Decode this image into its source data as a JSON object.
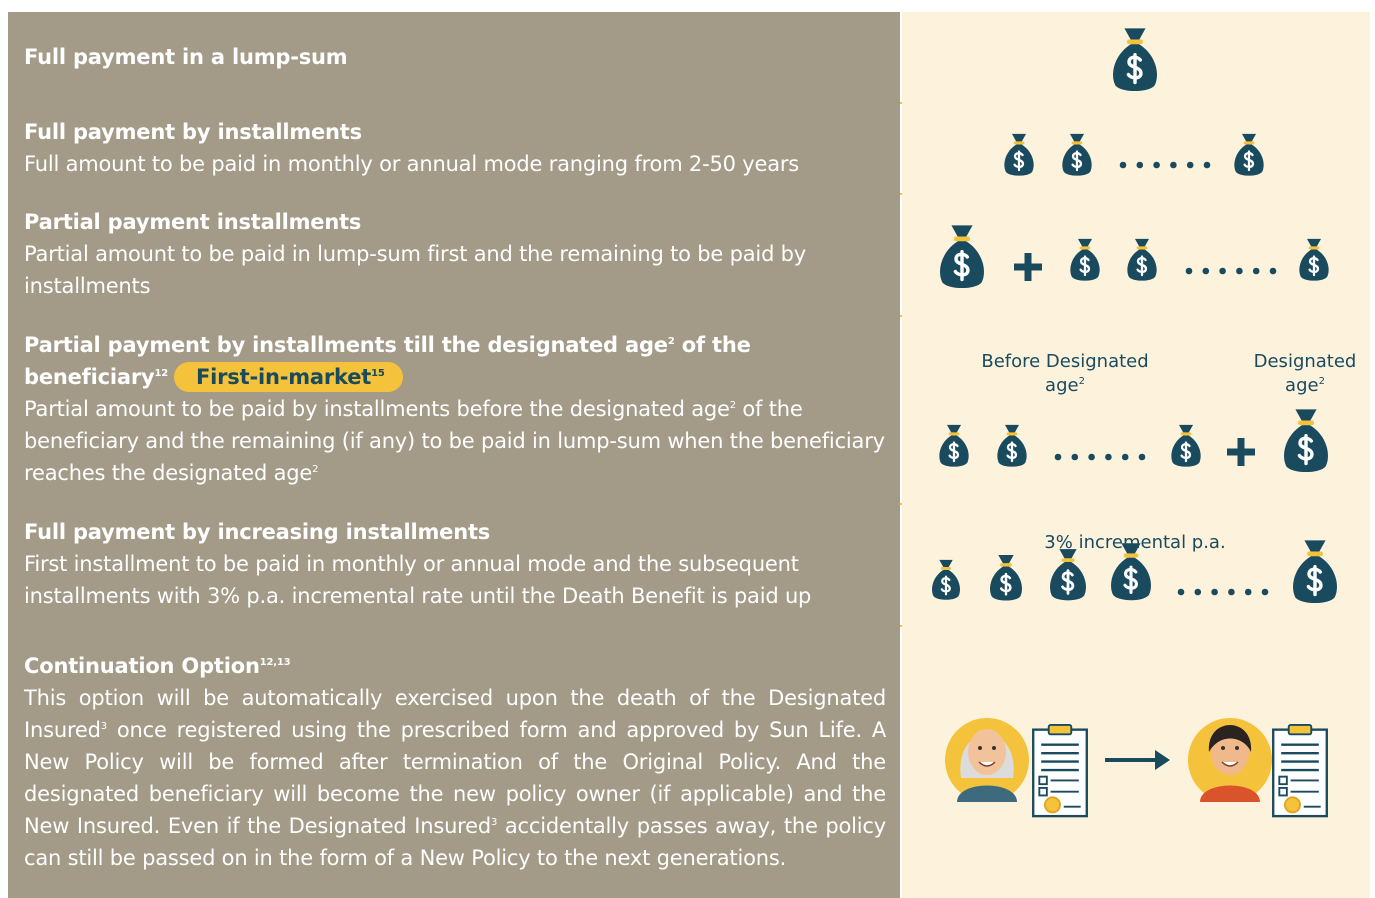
{
  "rows": [
    {
      "title": [
        {
          "text": "Full payment in a lump-sum"
        }
      ]
    },
    {
      "title": [
        {
          "text": "Full payment by installments"
        }
      ],
      "description": [
        {
          "text": "Full amount to be paid in monthly or annual mode ranging from 2-50 years"
        }
      ]
    },
    {
      "title": [
        {
          "text": "Partial payment installments"
        }
      ],
      "description": [
        {
          "text": "Partial amount to be paid in lump-sum first and the remaining to be paid by installments"
        }
      ]
    },
    {
      "title": [
        {
          "text": "Partial payment by installments till the designated age"
        },
        {
          "sup": "2"
        },
        {
          "text": " of the beneficiary"
        },
        {
          "sup": "12"
        }
      ],
      "badge": [
        {
          "text": "First-in-market"
        },
        {
          "sup": "15"
        }
      ],
      "description": [
        {
          "text": "Partial amount to be paid by installments before the designated age"
        },
        {
          "sup": "2"
        },
        {
          "text": " of the beneficiary and the remaining (if any) to be paid in lump-sum when the beneficiary reaches the designated age"
        },
        {
          "sup": "2"
        }
      ],
      "labels": [
        [
          {
            "text": "Before Designated age"
          },
          {
            "sup": "2"
          }
        ],
        [
          {
            "text": "Designated age"
          },
          {
            "sup": "2"
          }
        ]
      ]
    },
    {
      "title": [
        {
          "text": "Full payment by increasing installments"
        }
      ],
      "description": [
        {
          "text": "First installment to be paid in monthly or annual mode and the subsequent installments with 3% p.a. incremental rate until the Death Benefit is paid up"
        }
      ],
      "labels": [
        [
          {
            "text": "3% incremental p.a."
          }
        ]
      ]
    },
    {
      "title": [
        {
          "text": "Continuation Option"
        },
        {
          "sup": "12,13"
        }
      ],
      "description": [
        {
          "text": "This option will be automatically exercised upon the death of the Designated Insured"
        },
        {
          "sup": "3"
        },
        {
          "text": " once registered using the prescribed form and approved by Sun Life. A New Policy will be formed after termination of the Original Policy. And the designated beneficiary will become the new policy owner (if applicable) and the New Insured. Even if the Designated Insured"
        },
        {
          "sup": "3"
        },
        {
          "text": " accidentally passes away, the policy can still be passed on in the form of a New Policy to the next generations."
        }
      ]
    }
  ]
}
